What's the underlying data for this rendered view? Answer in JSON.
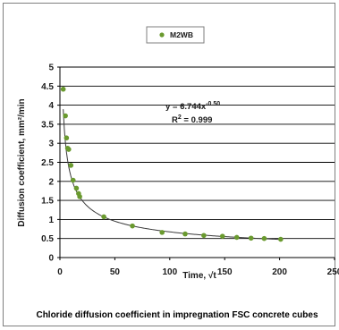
{
  "chart_data": {
    "type": "scatter",
    "title": "",
    "xlabel": "Time, √t",
    "ylabel": "Diffusion coefficient, mm²/min",
    "xlim": [
      0,
      250
    ],
    "ylim": [
      0,
      5
    ],
    "x_ticks": [
      "0",
      "50",
      "100",
      "150",
      "200",
      "250"
    ],
    "y_ticks": [
      "0",
      "0.5",
      "1",
      "1.5",
      "2",
      "2.5",
      "3",
      "3.5",
      "4",
      "4.5",
      "5"
    ],
    "grid": "horizontal",
    "legend_position": "top-center",
    "series": [
      {
        "name": "M2WB",
        "color": "#6a9a2f",
        "marker": "circle",
        "x": [
          3,
          5,
          6,
          7,
          8,
          10,
          12,
          15,
          17,
          18,
          40,
          66,
          93,
          114,
          131,
          148,
          161,
          174,
          186,
          201
        ],
        "y": [
          4.42,
          3.72,
          3.14,
          2.87,
          2.84,
          2.42,
          2.03,
          1.82,
          1.68,
          1.6,
          1.07,
          0.83,
          0.66,
          0.62,
          0.58,
          0.56,
          0.53,
          0.51,
          0.5,
          0.48
        ]
      }
    ],
    "trendline": {
      "type": "power",
      "coefficient": 6.744,
      "exponent": -0.5,
      "color": "#3a3a3a"
    },
    "annotations": {
      "equation_prefix": "y = 6.744x",
      "equation_exponent": "-0.50",
      "r_squared_prefix": "R",
      "r_squared_exponent": "2",
      "r_squared_value": " = 0.999"
    },
    "caption": "Chloride diffusion coefficient in impregnation FSC concrete cubes"
  }
}
